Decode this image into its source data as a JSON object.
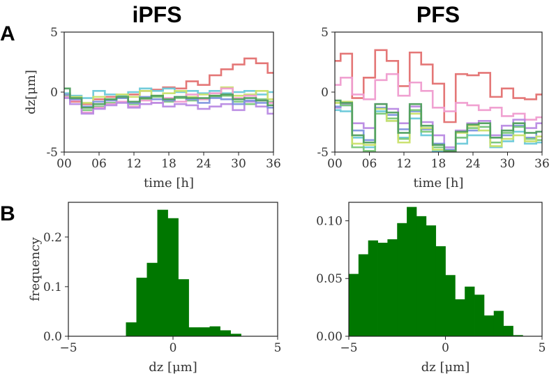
{
  "figure": {
    "col_titles": [
      "iPFS",
      "PFS"
    ],
    "panel_labels": [
      "A",
      "B"
    ]
  },
  "chart_data": [
    {
      "type": "line",
      "column": "iPFS",
      "panel": "A",
      "xlabel": "time [h]",
      "ylabel": "dz[μm]",
      "xlim": [
        0,
        36
      ],
      "ylim": [
        -5,
        5
      ],
      "xticks": [
        "00",
        "06",
        "12",
        "18",
        "24",
        "30",
        "36"
      ],
      "yticks": [
        "-5",
        "0",
        "5"
      ],
      "x": [
        0,
        2,
        4,
        6,
        8,
        10,
        12,
        14,
        16,
        18,
        20,
        22,
        24,
        26,
        28,
        30,
        32,
        34,
        36
      ],
      "series": [
        {
          "name": "red",
          "color": "#e37070",
          "values": [
            -0.2,
            -0.8,
            -1.0,
            -0.6,
            -0.4,
            -0.3,
            -0.2,
            0.1,
            0.2,
            0.4,
            0.3,
            0.9,
            0.6,
            1.4,
            1.9,
            2.3,
            2.8,
            2.4,
            1.6
          ]
        },
        {
          "name": "cyan",
          "color": "#6cc9d9",
          "values": [
            -0.1,
            -0.3,
            -0.5,
            0.1,
            -0.2,
            -0.3,
            0.0,
            0.3,
            0.1,
            0.3,
            0.0,
            0.1,
            -0.1,
            0.1,
            -0.1,
            0.0,
            0.1,
            -0.2,
            0.0
          ]
        },
        {
          "name": "green",
          "color": "#7ac87a",
          "values": [
            -0.3,
            -0.6,
            -1.5,
            -1.2,
            -0.9,
            -0.5,
            -1.0,
            -0.6,
            -0.4,
            -0.8,
            -0.5,
            -0.7,
            -0.6,
            -0.4,
            -0.3,
            -0.8,
            -1.0,
            -0.6,
            -0.8
          ]
        },
        {
          "name": "yellowgreen",
          "color": "#c9e06a",
          "values": [
            -0.2,
            -0.4,
            -0.9,
            -0.4,
            -0.6,
            -0.2,
            -0.4,
            0.1,
            -0.3,
            -0.1,
            0.1,
            -0.4,
            -0.2,
            -0.3,
            0.4,
            -0.3,
            -0.2,
            0.1,
            -0.6
          ]
        },
        {
          "name": "pink",
          "color": "#ef9ccf",
          "values": [
            -0.4,
            -0.7,
            -1.7,
            -1.3,
            -1.0,
            -0.8,
            -1.2,
            -0.7,
            -0.9,
            -0.5,
            -0.8,
            -0.2,
            -0.6,
            -0.1,
            0.3,
            -0.5,
            -0.3,
            -0.7,
            -0.9
          ]
        },
        {
          "name": "purple",
          "color": "#b98ae3",
          "values": [
            -0.5,
            -1.0,
            -1.8,
            -1.4,
            -1.1,
            -0.9,
            -1.3,
            -1.0,
            -0.9,
            -1.2,
            -1.0,
            -1.1,
            -1.4,
            -1.2,
            -1.0,
            -1.5,
            -0.8,
            -1.2,
            -1.8
          ]
        },
        {
          "name": "blue",
          "color": "#7f95df",
          "values": [
            -0.2,
            -0.6,
            -1.2,
            -0.8,
            -0.7,
            -0.5,
            -0.9,
            -0.4,
            -0.6,
            -0.7,
            -0.4,
            -0.6,
            -0.9,
            -0.5,
            -0.6,
            -1.0,
            -0.7,
            -0.9,
            -1.3
          ]
        },
        {
          "name": "darkgreen",
          "color": "#4f9f5e",
          "values": [
            0.3,
            -0.5,
            -1.3,
            -1.0,
            -0.6,
            -0.4,
            -0.8,
            -0.5,
            -0.3,
            -0.6,
            -0.4,
            -0.5,
            -0.5,
            -0.3,
            -0.2,
            -0.6,
            -0.5,
            -0.7,
            -1.1
          ]
        }
      ]
    },
    {
      "type": "line",
      "column": "PFS",
      "panel": "A",
      "xlabel": "time [h]",
      "ylabel": "",
      "xlim": [
        0,
        36
      ],
      "ylim": [
        -5,
        5
      ],
      "xticks": [
        "00",
        "06",
        "12",
        "18",
        "24",
        "30",
        "36"
      ],
      "yticks": [
        "-5",
        "0",
        "5"
      ],
      "x": [
        0,
        2,
        4,
        6,
        8,
        10,
        12,
        14,
        16,
        18,
        20,
        22,
        24,
        26,
        28,
        30,
        32,
        34,
        36
      ],
      "series": [
        {
          "name": "red",
          "color": "#e37070",
          "values": [
            2.6,
            3.2,
            -0.5,
            1.2,
            3.5,
            2.6,
            0.5,
            3.3,
            2.3,
            0.7,
            -2.5,
            1.5,
            1.4,
            1.6,
            -0.4,
            0.3,
            -0.5,
            -0.6,
            -0.2
          ]
        },
        {
          "name": "pink",
          "color": "#ef9ccf",
          "values": [
            0.6,
            1.2,
            -0.2,
            -0.6,
            1.0,
            1.5,
            -0.3,
            0.8,
            0.1,
            -1.3,
            -1.6,
            -0.9,
            -1.1,
            -1.5,
            -1.3,
            -2.0,
            -1.8,
            -2.3,
            -2.1
          ]
        },
        {
          "name": "purple",
          "color": "#b98ae3",
          "values": [
            -1.3,
            -1.0,
            -2.6,
            -3.0,
            -1.0,
            -1.4,
            -2.6,
            -1.2,
            -2.5,
            -3.6,
            -4.6,
            -3.2,
            -2.6,
            -2.4,
            -3.6,
            -2.8,
            -2.3,
            -3.0,
            -2.6
          ]
        },
        {
          "name": "blue",
          "color": "#7f95df",
          "values": [
            -1.2,
            -1.1,
            -3.2,
            -4.0,
            -1.3,
            -1.9,
            -3.1,
            -1.6,
            -3.1,
            -4.3,
            -4.8,
            -3.8,
            -3.2,
            -2.9,
            -4.2,
            -3.6,
            -2.8,
            -3.8,
            -3.3
          ]
        },
        {
          "name": "cyan",
          "color": "#6cc9d9",
          "values": [
            -1.5,
            -1.6,
            -3.8,
            -4.6,
            -1.6,
            -2.4,
            -3.8,
            -2.2,
            -3.6,
            -4.9,
            -5.0,
            -4.3,
            -3.6,
            -3.6,
            -4.6,
            -4.1,
            -3.3,
            -4.3,
            -4.2
          ]
        },
        {
          "name": "green",
          "color": "#7ac87a",
          "values": [
            -0.9,
            -1.1,
            -4.6,
            -4.9,
            -1.8,
            -2.2,
            -3.9,
            -1.5,
            -3.3,
            -4.6,
            -5.0,
            -3.8,
            -3.0,
            -2.9,
            -4.2,
            -3.4,
            -2.9,
            -3.9,
            -4.0
          ]
        },
        {
          "name": "yellowgreen",
          "color": "#c9e06a",
          "values": [
            -0.9,
            -0.8,
            -4.3,
            -4.4,
            -1.4,
            -2.4,
            -4.2,
            -1.8,
            -3.0,
            -4.8,
            -4.9,
            -3.4,
            -2.8,
            -3.2,
            -4.5,
            -3.9,
            -3.6,
            -4.1,
            -3.7
          ]
        },
        {
          "name": "darkgreen",
          "color": "#4f9f5e",
          "values": [
            -0.7,
            -0.9,
            -3.6,
            -4.2,
            -1.0,
            -1.7,
            -3.4,
            -1.0,
            -2.8,
            -4.4,
            -4.9,
            -3.3,
            -2.7,
            -2.6,
            -3.8,
            -3.2,
            -2.6,
            -3.4,
            -3.3
          ]
        }
      ]
    },
    {
      "type": "bar",
      "column": "iPFS",
      "panel": "B",
      "xlabel": "dz [μm]",
      "ylabel": "frequency",
      "xlim": [
        -5,
        5
      ],
      "ylim": [
        0,
        0.27
      ],
      "xticks": [
        "−5",
        "0",
        "5"
      ],
      "yticks": [
        "0.0",
        "0.1",
        "0.2"
      ],
      "xtick_values": [
        -5,
        0,
        5
      ],
      "ytick_values": [
        0,
        0.1,
        0.2
      ],
      "bin_width": 0.5,
      "bin_left_edges": [
        -2.25,
        -1.75,
        -1.25,
        -0.75,
        -0.25,
        0.25,
        0.75,
        1.25,
        1.75,
        2.25,
        2.75
      ],
      "values": [
        0.028,
        0.118,
        0.148,
        0.255,
        0.238,
        0.115,
        0.018,
        0.018,
        0.02,
        0.012,
        0.005
      ],
      "color": "#007700"
    },
    {
      "type": "bar",
      "column": "PFS",
      "panel": "B",
      "xlabel": "dz [μm]",
      "ylabel": "",
      "xlim": [
        -5,
        5
      ],
      "ylim": [
        0,
        0.116
      ],
      "xticks": [
        "−5",
        "0",
        "5"
      ],
      "yticks": [
        "0.00",
        "0.05",
        "0.10"
      ],
      "xtick_values": [
        -5,
        0,
        5
      ],
      "ytick_values": [
        0,
        0.05,
        0.1
      ],
      "bin_width": 0.5,
      "bin_left_edges": [
        -5.0,
        -4.5,
        -4.0,
        -3.5,
        -3.0,
        -2.5,
        -2.0,
        -1.5,
        -1.0,
        -0.5,
        0.0,
        0.5,
        1.0,
        1.5,
        2.0,
        2.5,
        3.0,
        3.5
      ],
      "values": [
        0.054,
        0.071,
        0.083,
        0.081,
        0.084,
        0.098,
        0.112,
        0.104,
        0.096,
        0.078,
        0.053,
        0.032,
        0.043,
        0.036,
        0.018,
        0.022,
        0.009,
        0.001
      ],
      "color": "#007700"
    }
  ]
}
